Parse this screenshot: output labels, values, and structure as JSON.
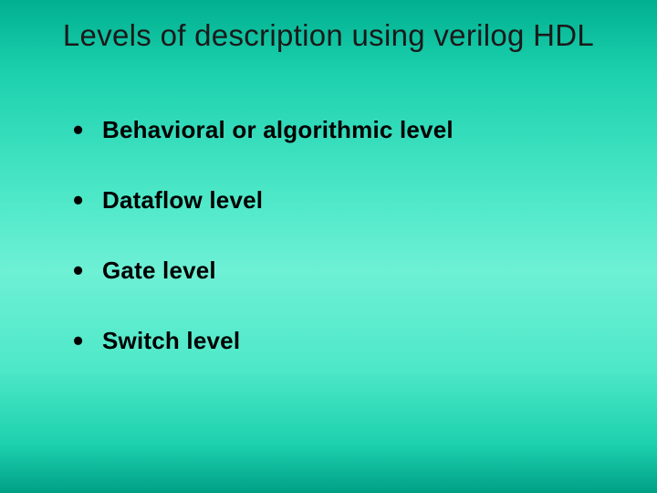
{
  "slide": {
    "title": "Levels of description using verilog HDL",
    "bullets": [
      "Behavioral or algorithmic level",
      "Dataflow level",
      "Gate level",
      "Switch level"
    ],
    "styling": {
      "background_gradient": [
        "#00b090",
        "#1dd1ae",
        "#4de8c8",
        "#6ef0d5",
        "#4de8c8",
        "#1dd1ae",
        "#00a085"
      ],
      "title_fontsize": 33,
      "title_fontweight": 400,
      "title_color": "#1a1a1a",
      "bullet_fontsize": 26,
      "bullet_fontweight": "bold",
      "bullet_color": "#000000",
      "bullet_marker": "disc",
      "font_family": "Arial, Helvetica, sans-serif",
      "title_align": "center",
      "bullet_spacing": 46,
      "title_bottom_margin": 68
    }
  }
}
